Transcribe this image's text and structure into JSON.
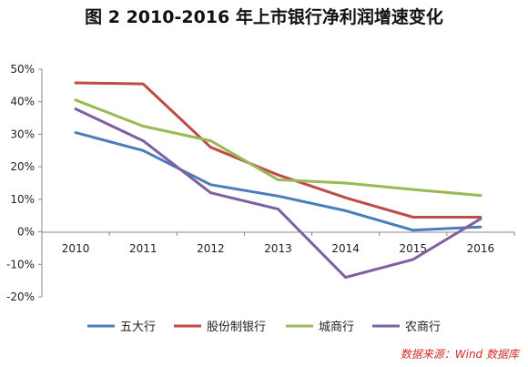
{
  "chart_data": {
    "type": "line",
    "title": "图 2  2010-2016 年上市银行净利润增速变化",
    "categories": [
      "2010",
      "2011",
      "2012",
      "2013",
      "2014",
      "2015",
      "2016"
    ],
    "series": [
      {
        "name": "五大行",
        "color": "#4a7ebb",
        "values": [
          30.5,
          25,
          14.5,
          11,
          6.5,
          0.5,
          1.5
        ]
      },
      {
        "name": "股份制银行",
        "color": "#be4b48",
        "values": [
          45.8,
          45.5,
          26,
          17.5,
          10.5,
          4.5,
          4.5
        ]
      },
      {
        "name": "城商行",
        "color": "#98b954",
        "values": [
          40.5,
          32.5,
          28,
          16,
          15,
          13,
          11.2
        ]
      },
      {
        "name": "农商行",
        "color": "#7d60a0",
        "values": [
          37.8,
          28,
          12,
          7,
          -14,
          -8.5,
          4
        ]
      }
    ],
    "y_ticks": [
      "50%",
      "40%",
      "30%",
      "20%",
      "10%",
      "0%",
      "-10%",
      "-20%"
    ],
    "ylim": [
      -20,
      50
    ],
    "grid": false,
    "legend_position": "bottom",
    "source": "数据来源：Wind 数据库"
  }
}
